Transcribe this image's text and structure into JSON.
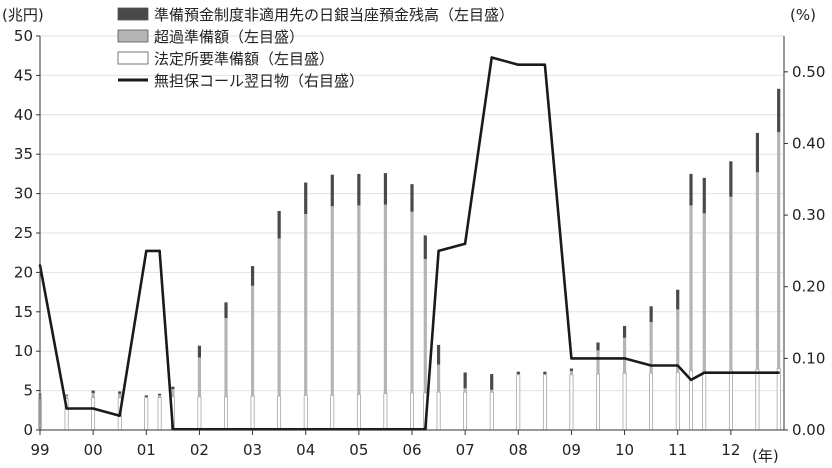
{
  "chart_data": {
    "type": "bar",
    "y_left_unit": "(兆円)",
    "y_right_unit": "(%)",
    "x_unit": "(年)",
    "x_tick_labels": [
      "99",
      "00",
      "01",
      "02",
      "03",
      "04",
      "05",
      "06",
      "07",
      "08",
      "09",
      "10",
      "11",
      "12"
    ],
    "ylim_left": [
      0,
      50
    ],
    "ylim_right": [
      0,
      0.55
    ],
    "y_left_ticks": [
      0,
      5,
      10,
      15,
      20,
      25,
      30,
      35,
      40,
      45,
      50
    ],
    "y_right_ticks": [
      "0.00",
      "0.10",
      "0.20",
      "0.30",
      "0.40",
      "0.50"
    ],
    "legend": [
      {
        "label": "準備預金制度非適用先の日銀当座預金残高（左目盛）",
        "style": "dark-fill"
      },
      {
        "label": "超過準備額（左目盛）",
        "style": "light-gray-fill"
      },
      {
        "label": "法定所要準備額（左目盛）",
        "style": "white-striped"
      },
      {
        "label": "無担保コール翌日物（右目盛）",
        "style": "line"
      }
    ],
    "colors": {
      "non_applicable": "#4a4a4a",
      "excess": "#b4b4b4",
      "required": "#ffffff",
      "call_rate": "#1a1a1a"
    },
    "time_points": [
      1999.0,
      1999.5,
      2000.0,
      2000.5,
      2001.0,
      2001.25,
      2001.5,
      2002.0,
      2002.5,
      2003.0,
      2003.5,
      2004.0,
      2004.5,
      2005.0,
      2005.5,
      2006.0,
      2006.25,
      2006.5,
      2007.0,
      2007.5,
      2008.0,
      2008.5,
      2009.0,
      2009.5,
      2010.0,
      2010.5,
      2011.0,
      2011.25,
      2011.5,
      2012.0,
      2012.5,
      2012.9
    ],
    "series": [
      {
        "name": "法定所要準備額（左目盛）",
        "axis": "left",
        "values": [
          4.0,
          4.0,
          4.1,
          4.1,
          4.1,
          4.1,
          4.2,
          4.2,
          4.2,
          4.3,
          4.3,
          4.4,
          4.4,
          4.5,
          4.6,
          4.7,
          4.7,
          4.8,
          4.8,
          4.8,
          7.0,
          7.0,
          7.0,
          7.1,
          7.2,
          7.2,
          7.3,
          7.5,
          7.5,
          7.6,
          7.7,
          7.8
        ]
      },
      {
        "name": "超過準備額（左目盛）",
        "axis": "left",
        "values": [
          0.5,
          0.4,
          0.6,
          0.5,
          0.1,
          0.3,
          1.0,
          5.0,
          10.0,
          14.0,
          20.0,
          23.0,
          24.0,
          24.0,
          24.0,
          23.0,
          17.0,
          3.5,
          0.5,
          0.3,
          0.1,
          0.1,
          0.5,
          3.0,
          4.5,
          6.5,
          8.0,
          21.0,
          20.0,
          22.0,
          25.0,
          30.0
        ]
      },
      {
        "name": "準備預金制度非適用先の日銀当座預金残高（左目盛）",
        "axis": "left",
        "values": [
          0.1,
          0.1,
          0.3,
          0.3,
          0.2,
          0.2,
          0.3,
          1.5,
          2.0,
          2.5,
          3.5,
          4.0,
          4.0,
          4.0,
          4.0,
          3.5,
          3.0,
          2.5,
          2.0,
          2.0,
          0.3,
          0.3,
          0.3,
          1.0,
          1.5,
          2.0,
          2.5,
          4.0,
          4.5,
          4.5,
          5.0,
          5.5
        ]
      },
      {
        "name": "無担保コール翌日物（右目盛）",
        "axis": "right",
        "values": [
          0.23,
          0.03,
          0.03,
          0.02,
          0.25,
          0.25,
          0.001,
          0.001,
          0.001,
          0.001,
          0.001,
          0.001,
          0.001,
          0.001,
          0.001,
          0.001,
          0.001,
          0.25,
          0.26,
          0.52,
          0.51,
          0.51,
          0.1,
          0.1,
          0.1,
          0.09,
          0.09,
          0.07,
          0.08,
          0.08,
          0.08,
          0.08
        ]
      }
    ],
    "grid": "horizontal"
  }
}
